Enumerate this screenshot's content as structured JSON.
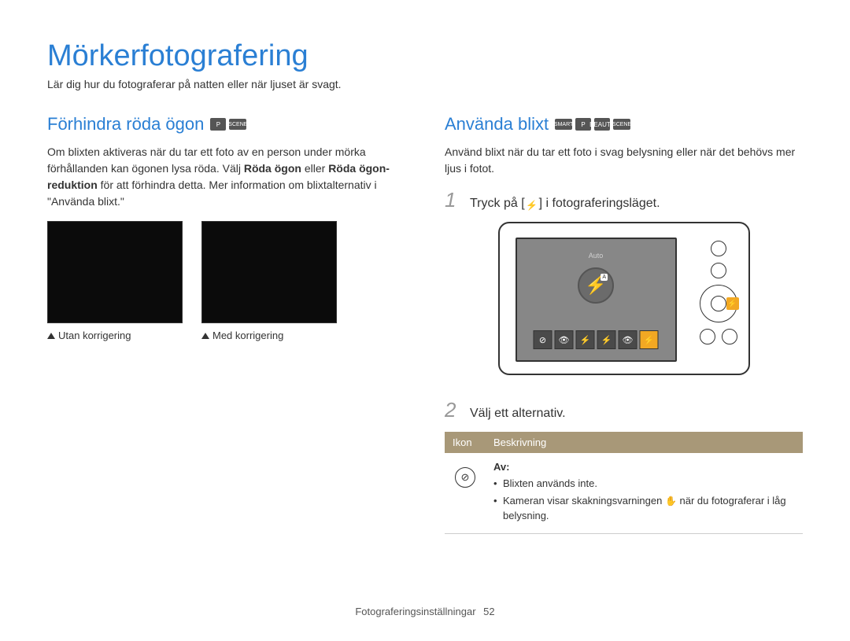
{
  "page": {
    "title": "Mörkerfotografering",
    "subtitle": "Lär dig hur du fotograferar på natten eller när ljuset är svagt.",
    "footer_label": "Fotograferingsinställningar",
    "page_number": "52"
  },
  "left": {
    "heading": "Förhindra röda ögon",
    "mode_icons": [
      "P",
      "SCENE"
    ],
    "para_1_a": "Om blixten aktiveras när du tar ett foto av en person under mörka förhållanden kan ögonen lysa röda. Välj ",
    "para_1_b": "Röda ögon",
    "para_1_c": " eller ",
    "para_1_d": "Röda ögon-reduktion",
    "para_1_e": " för att förhindra detta. Mer information om blixtalternativ i \"Använda blixt.\"",
    "caption_left": "Utan korrigering",
    "caption_right": "Med korrigering"
  },
  "right": {
    "heading": "Använda blixt",
    "mode_icons": [
      "SMART",
      "P",
      "BEAUTY",
      "SCENE"
    ],
    "para": "Använd blixt när du tar ett foto i svag belysning eller när det behövs mer ljus i fotot.",
    "step1_a": "Tryck på [",
    "step1_b": "] i fotograferingsläget.",
    "step2": "Välj ett alternativ.",
    "camera": {
      "auto_label": "Auto",
      "flash_glyph": "⚡",
      "option_glyphs": [
        "⊘",
        "👁",
        "⚡",
        "⚡",
        "👁",
        "⚡"
      ],
      "active_index": 5,
      "colors": {
        "screen_bg": "#878787",
        "active_bg": "#f2a823",
        "option_bg": "#4a4a4a"
      }
    },
    "table": {
      "header_icon": "Ikon",
      "header_desc": "Beskrivning",
      "header_bg": "#a89878",
      "row": {
        "icon_glyph": "⊘",
        "label": "Av:",
        "bullet1": "Blixten används inte.",
        "bullet2_a": "Kameran visar skakningsvarningen ",
        "bullet2_b": " när du fotograferar i låg belysning.",
        "shake_glyph": "✋"
      }
    }
  },
  "colors": {
    "accent": "#2a7fd4",
    "text": "#333333"
  }
}
